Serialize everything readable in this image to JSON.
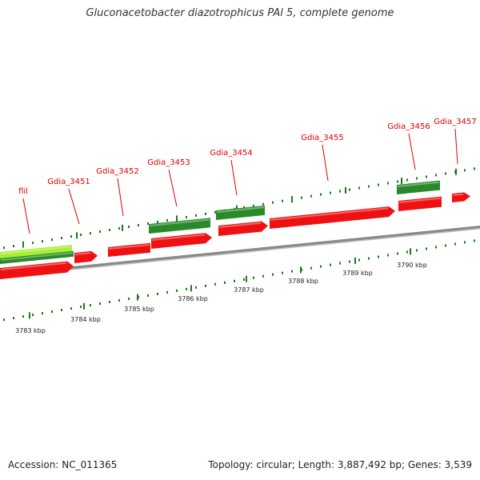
{
  "title": "Gluconacetobacter diazotrophicus PAl 5, complete genome",
  "footer": {
    "accession": "Accession: NC_011365",
    "summary": "Topology: circular; Length: 3,887,492 bp; Genes: 3,539"
  },
  "scale_labels": [
    "3783 kbp",
    "3784 kbp",
    "3785 kbp",
    "3786 kbp",
    "3787 kbp",
    "3788 kbp",
    "3789 kbp",
    "3790 kbp"
  ],
  "gene_labels": [
    "flil",
    "Gdia_3451",
    "Gdia_3452",
    "Gdia_3453",
    "Gdia_3454",
    "Gdia_3455",
    "Gdia_3456",
    "Gdia_3457"
  ],
  "colors": {
    "cds": "#ee1111",
    "gene": "#2a8a2a",
    "highlight": "#a8ee33",
    "backbone": "#888888",
    "tick": "#1a7a1a",
    "label": "#dd0000"
  }
}
